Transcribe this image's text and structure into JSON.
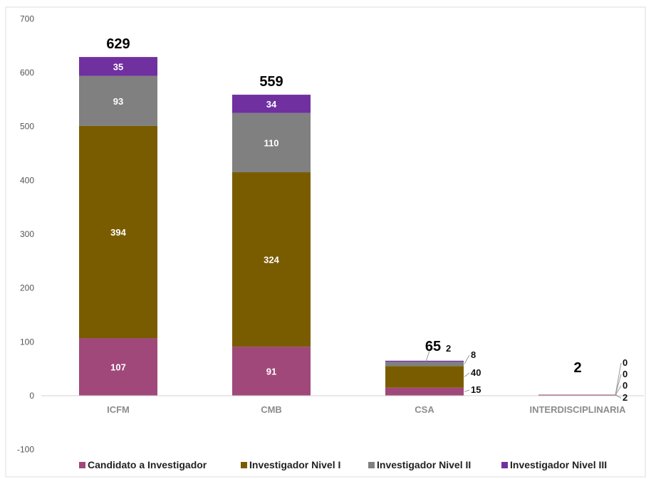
{
  "chart_data": {
    "type": "bar",
    "stacked": true,
    "categories": [
      "ICFM",
      "CMB",
      "CSA",
      "INTERDISCIPLINARIA"
    ],
    "series": [
      {
        "name": "Candidato a Investigador",
        "color": "#a0487a",
        "values": [
          107,
          91,
          15,
          2
        ]
      },
      {
        "name": "Investigador Nivel I",
        "color": "#7a5c00",
        "values": [
          394,
          324,
          40,
          0
        ]
      },
      {
        "name": "Investigador Nivel II",
        "color": "#808080",
        "values": [
          93,
          110,
          8,
          0
        ]
      },
      {
        "name": "Investigador Nivel III",
        "color": "#7030a0",
        "values": [
          35,
          34,
          2,
          0
        ]
      }
    ],
    "totals": [
      629,
      559,
      65,
      2
    ],
    "ylim": [
      -100,
      700
    ],
    "yticks": [
      -100,
      0,
      100,
      200,
      300,
      400,
      500,
      600,
      700
    ],
    "grid": false,
    "legend": "bottom",
    "title": "",
    "xlabel": "",
    "ylabel": ""
  }
}
